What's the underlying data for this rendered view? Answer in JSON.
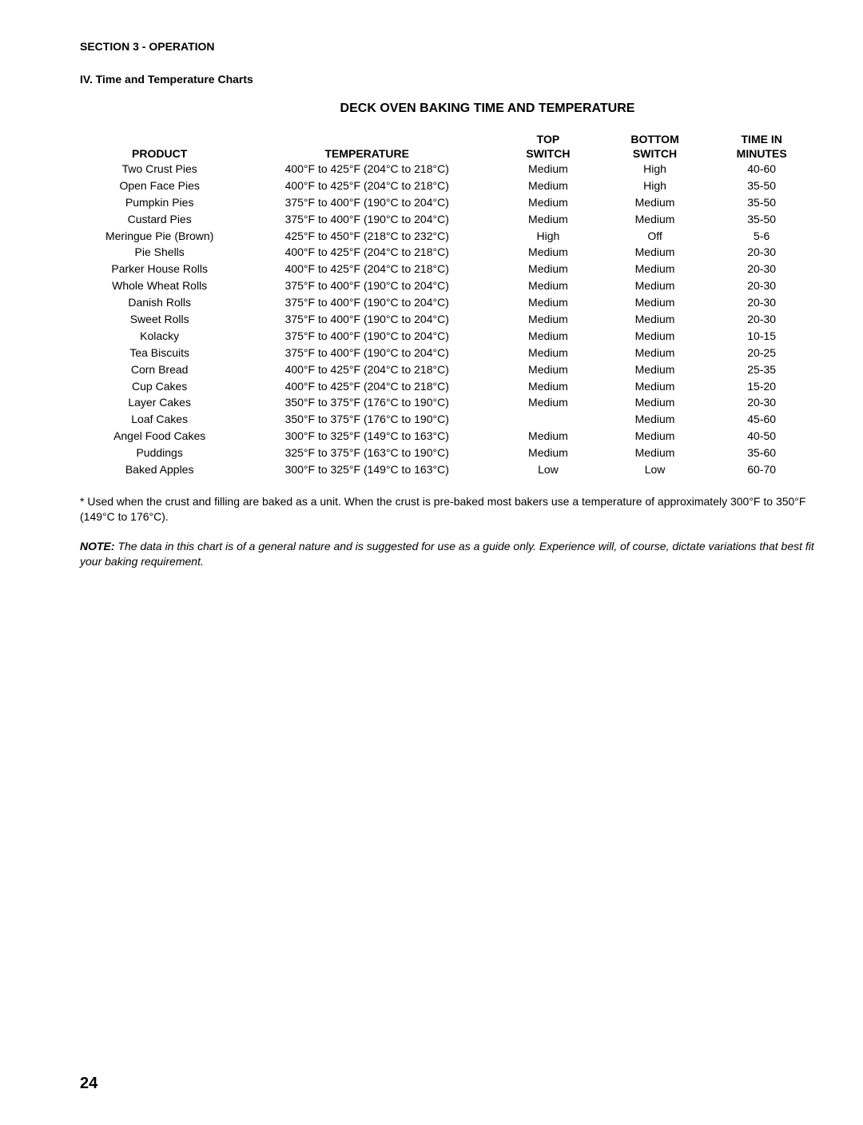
{
  "section_header": "SECTION 3 - OPERATION",
  "subsection_header": "IV.  Time and Temperature Charts",
  "table_title": "DECK OVEN BAKING TIME AND TEMPERATURE",
  "columns": {
    "product": "PRODUCT",
    "temperature": "TEMPERATURE",
    "top1": "TOP",
    "top2": "SWITCH",
    "bottom1": "BOTTOM",
    "bottom2": "SWITCH",
    "time1": "TIME IN",
    "time2": "MINUTES"
  },
  "rows": [
    {
      "product": "Two Crust Pies",
      "temperature": "400°F to 425°F (204°C to 218°C)",
      "top": "Medium",
      "bottom": "High",
      "time": "40-60"
    },
    {
      "product": "Open Face Pies",
      "temperature": "400°F to 425°F (204°C to 218°C)",
      "top": "Medium",
      "bottom": "High",
      "time": "35-50"
    },
    {
      "product": "Pumpkin Pies",
      "temperature": "375°F to 400°F (190°C to 204°C)",
      "top": "Medium",
      "bottom": "Medium",
      "time": "35-50"
    },
    {
      "product": "Custard Pies",
      "temperature": "375°F to 400°F (190°C to 204°C)",
      "top": "Medium",
      "bottom": "Medium",
      "time": "35-50"
    },
    {
      "product": "Meringue Pie (Brown)",
      "temperature": "425°F to 450°F (218°C to 232°C)",
      "top": "High",
      "bottom": "Off",
      "time": "5-6"
    },
    {
      "product": "Pie Shells",
      "temperature": "400°F to 425°F (204°C to 218°C)",
      "top": "Medium",
      "bottom": "Medium",
      "time": "20-30"
    },
    {
      "product": "Parker House Rolls",
      "temperature": "400°F to 425°F (204°C to 218°C)",
      "top": "Medium",
      "bottom": "Medium",
      "time": "20-30"
    },
    {
      "product": "Whole Wheat Rolls",
      "temperature": "375°F to 400°F (190°C to 204°C)",
      "top": "Medium",
      "bottom": "Medium",
      "time": "20-30"
    },
    {
      "product": "Danish Rolls",
      "temperature": "375°F to 400°F (190°C to 204°C)",
      "top": "Medium",
      "bottom": "Medium",
      "time": "20-30"
    },
    {
      "product": "Sweet Rolls",
      "temperature": "375°F to 400°F (190°C to 204°C)",
      "top": "Medium",
      "bottom": "Medium",
      "time": "20-30"
    },
    {
      "product": "Kolacky",
      "temperature": "375°F to 400°F (190°C to 204°C)",
      "top": "Medium",
      "bottom": "Medium",
      "time": "10-15"
    },
    {
      "product": "Tea Biscuits",
      "temperature": "375°F to 400°F (190°C to 204°C)",
      "top": "Medium",
      "bottom": "Medium",
      "time": "20-25"
    },
    {
      "product": "Corn Bread",
      "temperature": "400°F to 425°F (204°C to 218°C)",
      "top": "Medium",
      "bottom": "Medium",
      "time": "25-35"
    },
    {
      "product": "Cup Cakes",
      "temperature": "400°F to 425°F (204°C to 218°C)",
      "top": "Medium",
      "bottom": "Medium",
      "time": "15-20"
    },
    {
      "product": "Layer Cakes",
      "temperature": "350°F to 375°F (176°C to 190°C)",
      "top": "Medium",
      "bottom": "Medium",
      "time": "20-30"
    },
    {
      "product": "Loaf Cakes",
      "temperature": "350°F to 375°F (176°C to 190°C)",
      "top": "",
      "bottom": "Medium",
      "time": "45-60"
    },
    {
      "product": "Angel Food Cakes",
      "temperature": "300°F to 325°F (149°C to 163°C)",
      "top": "Medium",
      "bottom": "Medium",
      "time": "40-50"
    },
    {
      "product": "Puddings",
      "temperature": "325°F to 375°F (163°C to 190°C)",
      "top": "Medium",
      "bottom": "Medium",
      "time": "35-60"
    },
    {
      "product": "Baked Apples",
      "temperature": "300°F to 325°F (149°C to 163°C)",
      "top": "Low",
      "bottom": "Low",
      "time": "60-70"
    }
  ],
  "footnote": "* Used when the crust and filling are baked as a unit. When the crust is pre-baked most bakers use a temperature of approximately 300°F to 350°F (149°C to 176°C).",
  "note_label": "NOTE:",
  "note_body": " The data in this chart is of a general nature and is suggested for use as a guide only. Experience will, of course, dictate variations that best fit your baking requirement.",
  "page_number": "24"
}
